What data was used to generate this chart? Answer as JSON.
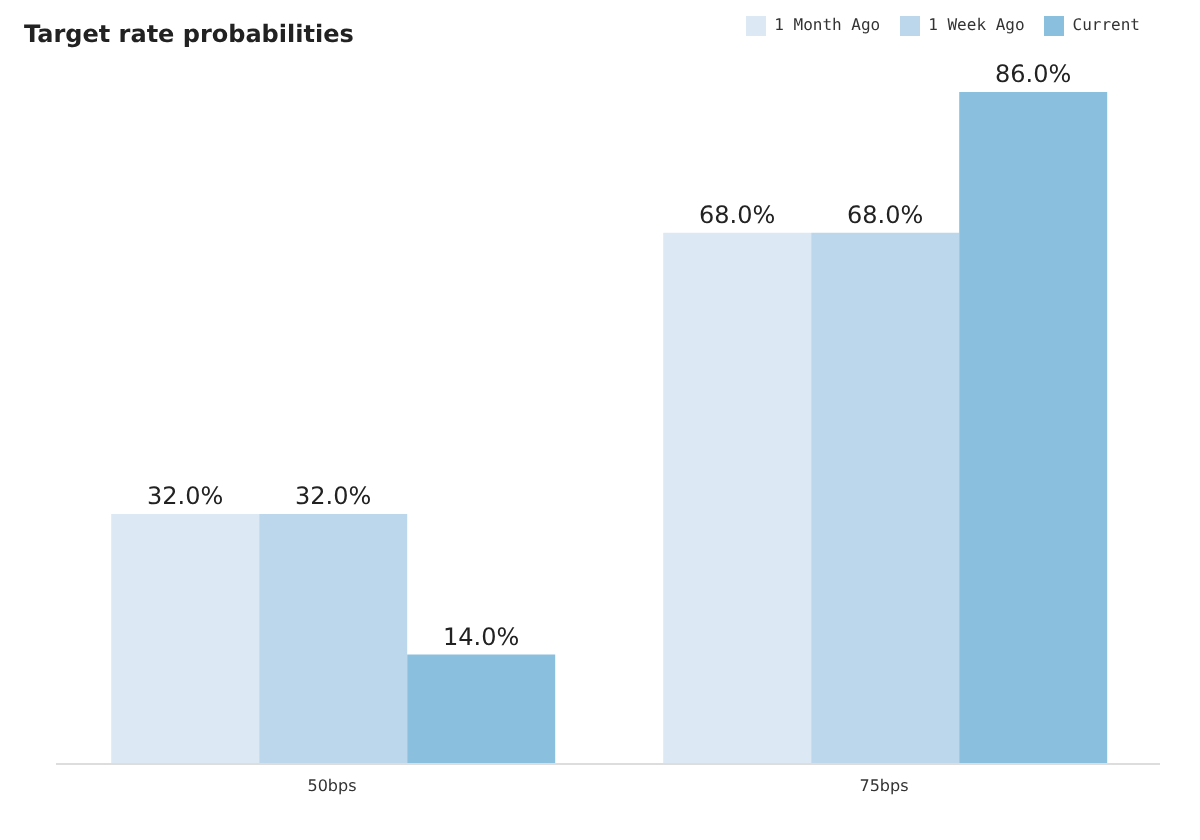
{
  "chart_data": {
    "type": "bar",
    "title": "Target rate probabilities",
    "categories": [
      "50bps",
      "75bps"
    ],
    "series": [
      {
        "name": "1 Month Ago",
        "color": "#dce9f5",
        "values": [
          32,
          68
        ],
        "value_labels": [
          "32.0%",
          "68.0%"
        ]
      },
      {
        "name": "1 Week Ago",
        "color": "#bcd7ec",
        "values": [
          32,
          68
        ],
        "value_labels": [
          "32.0%",
          "68.0%"
        ]
      },
      {
        "name": "Current",
        "color": "#8bbfde",
        "values": [
          14,
          86
        ],
        "value_labels": [
          "14.0%",
          "86.0%"
        ]
      }
    ],
    "legend": "top right",
    "grid": false
  }
}
